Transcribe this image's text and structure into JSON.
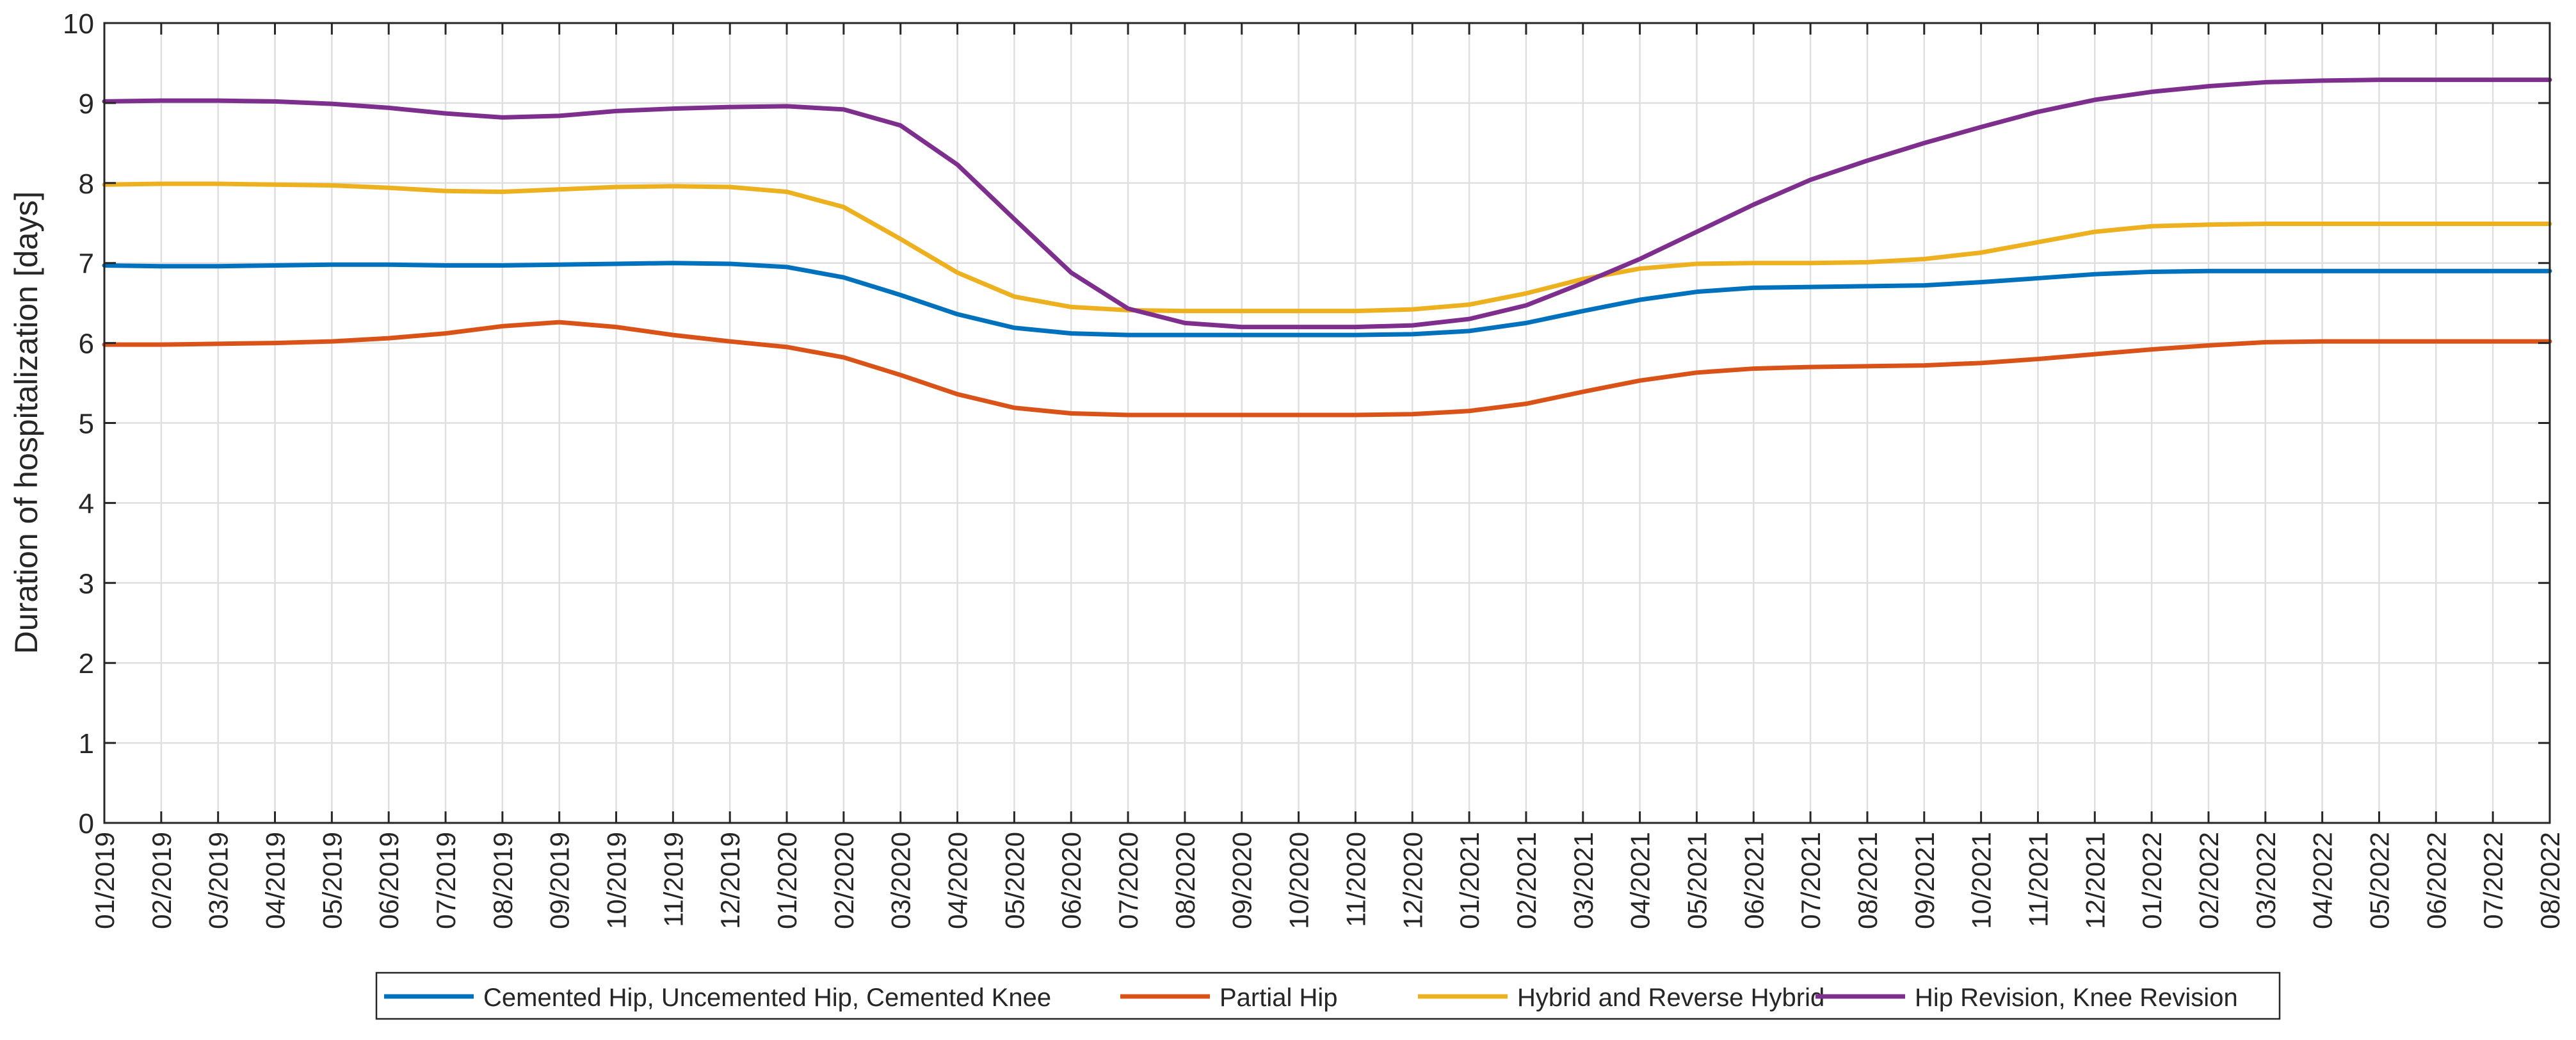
{
  "chart_data": {
    "type": "line",
    "title": "",
    "xlabel": "",
    "ylabel": "Duration of hospitalization [days]",
    "ylim": [
      0,
      10
    ],
    "yticks": [
      "0",
      "1",
      "2",
      "3",
      "4",
      "5",
      "6",
      "7",
      "8",
      "9",
      "10"
    ],
    "grid": true,
    "legend_location": "bottom-center",
    "categories": [
      "01/2019",
      "02/2019",
      "03/2019",
      "04/2019",
      "05/2019",
      "06/2019",
      "07/2019",
      "08/2019",
      "09/2019",
      "10/2019",
      "11/2019",
      "12/2019",
      "01/2020",
      "02/2020",
      "03/2020",
      "04/2020",
      "05/2020",
      "06/2020",
      "07/2020",
      "08/2020",
      "09/2020",
      "10/2020",
      "11/2020",
      "12/2020",
      "01/2021",
      "02/2021",
      "03/2021",
      "04/2021",
      "05/2021",
      "06/2021",
      "07/2021",
      "08/2021",
      "09/2021",
      "10/2021",
      "11/2021",
      "12/2021",
      "01/2022",
      "02/2022",
      "03/2022",
      "04/2022",
      "05/2022",
      "06/2022",
      "07/2022",
      "08/2022"
    ],
    "series": [
      {
        "name": "Cemented Hip, Uncemented Hip, Cemented Knee",
        "color": "#0072BD",
        "values": [
          6.97,
          6.96,
          6.96,
          6.97,
          6.98,
          6.98,
          6.97,
          6.97,
          6.98,
          6.99,
          7.0,
          6.99,
          6.95,
          6.82,
          6.6,
          6.36,
          6.19,
          6.12,
          6.1,
          6.1,
          6.1,
          6.1,
          6.1,
          6.11,
          6.15,
          6.25,
          6.4,
          6.54,
          6.64,
          6.69,
          6.7,
          6.71,
          6.72,
          6.76,
          6.81,
          6.86,
          6.89,
          6.9,
          6.9,
          6.9,
          6.9,
          6.9,
          6.9,
          6.9
        ]
      },
      {
        "name": "Partial Hip",
        "color": "#D95319",
        "values": [
          5.98,
          5.98,
          5.99,
          6.0,
          6.02,
          6.06,
          6.12,
          6.21,
          6.26,
          6.2,
          6.1,
          6.02,
          5.95,
          5.82,
          5.6,
          5.36,
          5.19,
          5.12,
          5.1,
          5.1,
          5.1,
          5.1,
          5.1,
          5.11,
          5.15,
          5.24,
          5.39,
          5.53,
          5.63,
          5.68,
          5.7,
          5.71,
          5.72,
          5.75,
          5.8,
          5.86,
          5.92,
          5.97,
          6.01,
          6.02,
          6.02,
          6.02,
          6.02,
          6.02
        ]
      },
      {
        "name": "Hybrid and Reverse Hybrid",
        "color": "#EDB120",
        "values": [
          7.98,
          7.99,
          7.99,
          7.98,
          7.97,
          7.94,
          7.9,
          7.89,
          7.92,
          7.95,
          7.96,
          7.95,
          7.89,
          7.7,
          7.3,
          6.88,
          6.58,
          6.45,
          6.41,
          6.4,
          6.4,
          6.4,
          6.4,
          6.42,
          6.48,
          6.62,
          6.8,
          6.93,
          6.99,
          7.0,
          7.0,
          7.01,
          7.05,
          7.13,
          7.26,
          7.39,
          7.46,
          7.48,
          7.49,
          7.49,
          7.49,
          7.49,
          7.49,
          7.49
        ]
      },
      {
        "name": "Hip Revision, Knee Revision",
        "color": "#7E2F8E",
        "values": [
          9.02,
          9.03,
          9.03,
          9.02,
          8.99,
          8.94,
          8.87,
          8.82,
          8.84,
          8.9,
          8.93,
          8.95,
          8.96,
          8.92,
          8.72,
          8.23,
          7.55,
          6.88,
          6.43,
          6.25,
          6.2,
          6.2,
          6.2,
          6.22,
          6.3,
          6.47,
          6.75,
          7.05,
          7.39,
          7.73,
          8.04,
          8.28,
          8.5,
          8.7,
          8.89,
          9.04,
          9.14,
          9.21,
          9.26,
          9.28,
          9.29,
          9.29,
          9.29,
          9.29
        ]
      }
    ]
  }
}
